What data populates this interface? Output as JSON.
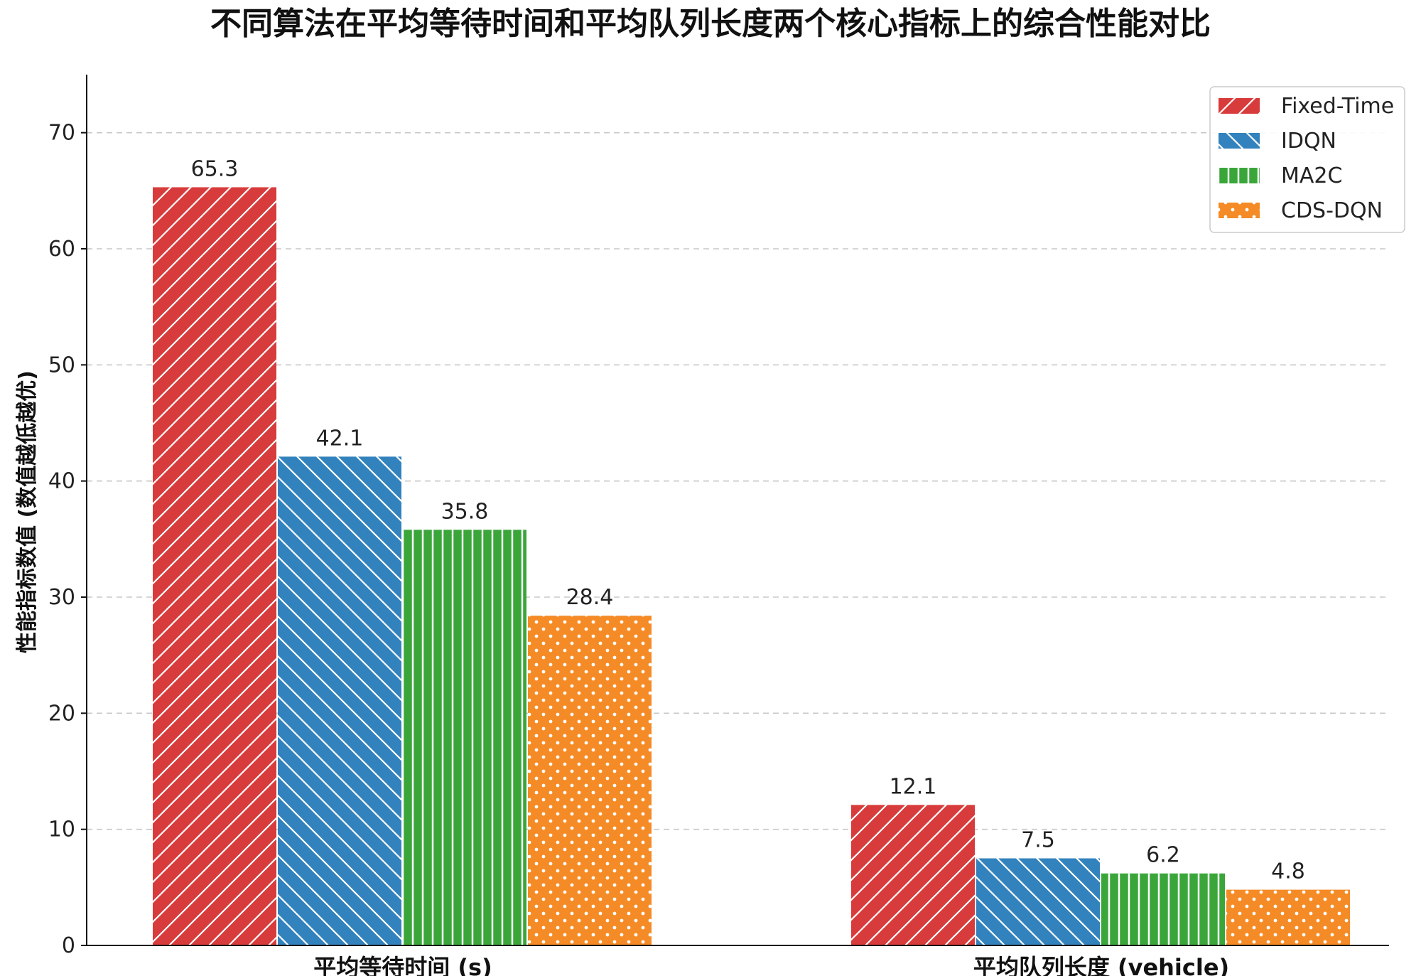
{
  "chart_data": {
    "type": "bar",
    "title": "不同算法在平均等待时间和平均队列长度两个核心指标上的综合性能对比",
    "xlabel": "",
    "ylabel": "性能指标数值 (数值越低越优)",
    "categories": [
      "平均等待时间 (s)",
      "平均队列长度 (vehicle)"
    ],
    "ylim": [
      0,
      75
    ],
    "yticks": [
      0,
      10,
      20,
      30,
      40,
      50,
      60,
      70
    ],
    "grid": "horizontal dashed",
    "legend_position": "top-right",
    "series": [
      {
        "name": "Fixed-Time",
        "values": [
          65.3,
          12.1
        ],
        "labels": [
          "65.3",
          "12.1"
        ],
        "color": "#d83b3b",
        "hatch": "diagonal-forward"
      },
      {
        "name": "IDQN",
        "values": [
          42.1,
          7.5
        ],
        "labels": [
          "42.1",
          "7.5"
        ],
        "color": "#3282bd",
        "hatch": "diagonal-back"
      },
      {
        "name": "MA2C",
        "values": [
          35.8,
          6.2
        ],
        "labels": [
          "35.8",
          "6.2"
        ],
        "color": "#3aa63a",
        "hatch": "vertical"
      },
      {
        "name": "CDS-DQN",
        "values": [
          28.4,
          4.8
        ],
        "labels": [
          "28.4",
          "4.8"
        ],
        "color": "#f58b26",
        "hatch": "dots"
      }
    ]
  }
}
